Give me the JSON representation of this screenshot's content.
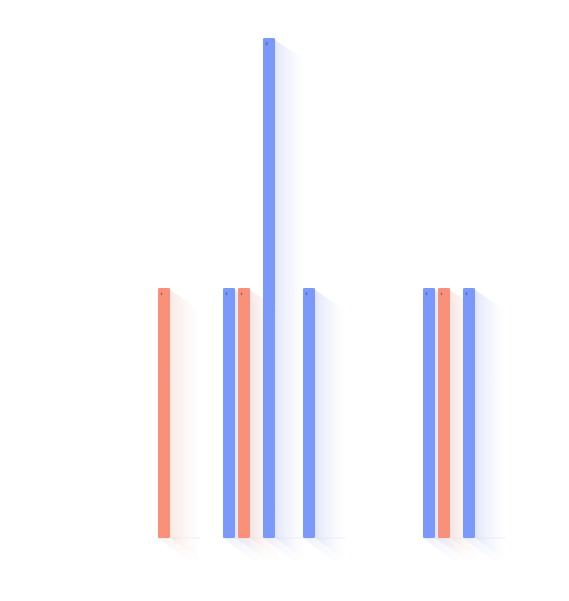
{
  "chart_data": {
    "type": "bar",
    "title": "",
    "xlabel": "",
    "ylabel": "",
    "ylim": [
      0,
      2
    ],
    "colors": {
      "blue": "#7b98fb",
      "orange": "#f8907a"
    },
    "bars": [
      {
        "group": 0,
        "color": "orange",
        "value": 1,
        "label": "1"
      },
      {
        "group": 1,
        "color": "blue",
        "value": 1,
        "label": "1"
      },
      {
        "group": 1,
        "color": "orange",
        "value": 1,
        "label": "1"
      },
      {
        "group": 1,
        "color": "blue",
        "value": 2,
        "label": "2"
      },
      {
        "group": 1,
        "color": "blue",
        "value": 1,
        "label": "1"
      },
      {
        "group": 2,
        "color": "blue",
        "value": 1,
        "label": "1"
      },
      {
        "group": 2,
        "color": "orange",
        "value": 1,
        "label": "1"
      },
      {
        "group": 2,
        "color": "blue",
        "value": 1,
        "label": "1"
      }
    ]
  }
}
